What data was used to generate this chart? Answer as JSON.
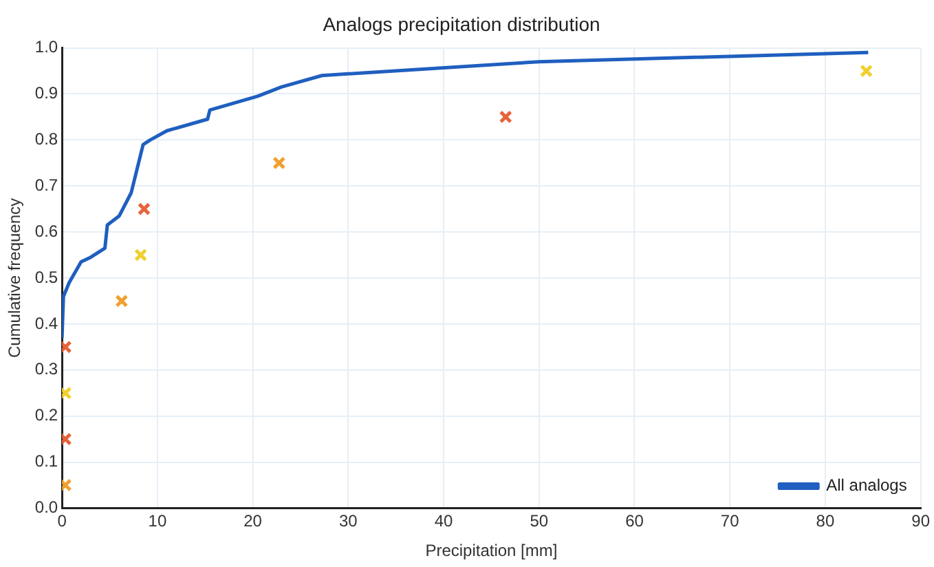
{
  "chart_data": {
    "type": "line",
    "title": "Analogs precipitation distribution",
    "xlabel": "Precipitation [mm]",
    "ylabel": "Cumulative frequency",
    "xlim": [
      0,
      90
    ],
    "xticks": [
      0,
      10,
      20,
      30,
      40,
      50,
      60,
      70,
      80,
      90
    ],
    "ylim": [
      0,
      1
    ],
    "yticks": [
      {
        "value": 0,
        "label": "0.0"
      },
      0.1,
      0.2,
      0.3,
      0.4,
      0.5,
      0.6,
      0.7,
      0.8,
      0.9,
      {
        "value": 1,
        "label": "1.0"
      }
    ],
    "grid": true,
    "legend": "bottom right",
    "series": [
      {
        "name": "All analogs",
        "color": "#1f5fbf",
        "marker": "none",
        "line_style": "solid",
        "x": [
          0,
          0.15,
          0.75,
          2,
          3,
          4.5,
          4.75,
          6,
          7.25,
          8.5,
          9.25,
          11,
          15.25,
          15.5,
          18,
          20.5,
          23,
          27.25,
          50,
          84.5
        ],
        "values": [
          0.37,
          0.46,
          0.49,
          0.535,
          0.545,
          0.565,
          0.615,
          0.635,
          0.685,
          0.79,
          0.8,
          0.82,
          0.845,
          0.865,
          0.88,
          0.895,
          0.915,
          0.94,
          0.97,
          0.99
        ]
      },
      {
        "type": "scatter",
        "marker": "cross",
        "x": [
          0.35,
          0.35,
          0.35,
          0.35,
          6.25,
          8.25,
          8.6,
          22.75,
          46.5,
          84.3
        ],
        "values": [
          0.05,
          0.15,
          0.25,
          0.35,
          0.45,
          0.55,
          0.65,
          0.75,
          0.85,
          0.95
        ],
        "colors": [
          "#f0a030",
          "#e8623a",
          "#f0d030",
          "#e8623a",
          "#f0a030",
          "#f0d030",
          "#e8623a",
          "#f0a030",
          "#e8623a",
          "#f0d030"
        ]
      }
    ]
  }
}
